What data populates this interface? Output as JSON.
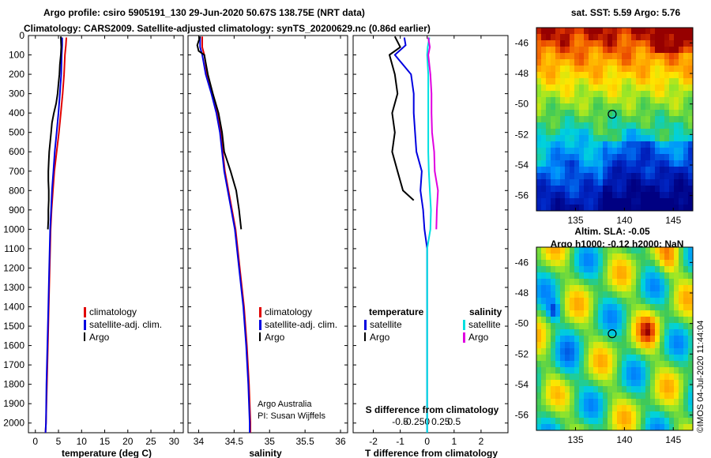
{
  "header": {
    "line1": "Argo profile: csiro 5905191_130 29-Jun-2020 50.67S 138.75E (NRT data)",
    "line2": "Climatology: CARS2009. Satellite-adjusted climatology: synTS_20200629.nc (0.86d earlier)"
  },
  "colors": {
    "climatology": "#e00000",
    "satellite": "#0000e0",
    "argo": "#000000",
    "sal_sat": "#00e0e0",
    "sal_argo": "#e000e0"
  },
  "depth_axis": {
    "ticks": [
      "0",
      "100",
      "200",
      "300",
      "400",
      "500",
      "600",
      "700",
      "800",
      "900",
      "1000",
      "1100",
      "1200",
      "1300",
      "1400",
      "1500",
      "1600",
      "1700",
      "1800",
      "1900",
      "2000"
    ]
  },
  "chart_data": [
    {
      "type": "line",
      "xlabel": "temperature (deg C)",
      "xticks": [
        "0",
        "5",
        "10",
        "15",
        "20",
        "25",
        "30"
      ],
      "xlim": [
        -1.5,
        32
      ],
      "ylim": [
        2050,
        0
      ],
      "legend": [
        "climatology",
        "satellite-adj. clim.",
        "Argo"
      ],
      "series": [
        {
          "name": "climatology",
          "color": "climatology",
          "points": [
            [
              6.7,
              10
            ],
            [
              6.6,
              50
            ],
            [
              6.4,
              100
            ],
            [
              6.2,
              200
            ],
            [
              5.9,
              300
            ],
            [
              5.5,
              400
            ],
            [
              5.1,
              500
            ],
            [
              4.6,
              600
            ],
            [
              4.1,
              700
            ],
            [
              3.8,
              800
            ],
            [
              3.5,
              900
            ],
            [
              3.3,
              1000
            ],
            [
              3.1,
              1200
            ],
            [
              2.9,
              1400
            ],
            [
              2.7,
              1600
            ],
            [
              2.5,
              1800
            ],
            [
              2.3,
              2000
            ],
            [
              2.2,
              2050
            ]
          ]
        },
        {
          "name": "satellite-adj. clim.",
          "color": "satellite",
          "points": [
            [
              5.8,
              10
            ],
            [
              5.8,
              50
            ],
            [
              5.7,
              100
            ],
            [
              5.6,
              200
            ],
            [
              5.3,
              300
            ],
            [
              5.0,
              400
            ],
            [
              4.6,
              500
            ],
            [
              4.2,
              600
            ],
            [
              3.9,
              700
            ],
            [
              3.6,
              800
            ],
            [
              3.4,
              900
            ],
            [
              3.2,
              1000
            ],
            [
              3.0,
              1200
            ],
            [
              2.8,
              1400
            ],
            [
              2.6,
              1600
            ],
            [
              2.4,
              1800
            ],
            [
              2.3,
              2000
            ],
            [
              2.2,
              2050
            ]
          ]
        },
        {
          "name": "Argo",
          "color": "argo",
          "points": [
            [
              5.5,
              5
            ],
            [
              5.6,
              60
            ],
            [
              5.5,
              100
            ],
            [
              5.3,
              150
            ],
            [
              5.2,
              200
            ],
            [
              5.0,
              250
            ],
            [
              4.8,
              300
            ],
            [
              4.5,
              350
            ],
            [
              4.0,
              400
            ],
            [
              3.6,
              450
            ],
            [
              3.4,
              500
            ],
            [
              3.2,
              550
            ],
            [
              3.0,
              600
            ],
            [
              2.9,
              650
            ],
            [
              2.8,
              700
            ],
            [
              2.8,
              750
            ],
            [
              2.9,
              800
            ],
            [
              2.9,
              850
            ],
            [
              2.8,
              900
            ],
            [
              2.8,
              950
            ],
            [
              2.7,
              1000
            ]
          ]
        }
      ]
    },
    {
      "type": "line",
      "xlabel": "salinity",
      "xticks": [
        "34",
        "34.5",
        "35",
        "35.5",
        "36"
      ],
      "xlim": [
        33.85,
        36.1
      ],
      "ylim": [
        2050,
        0
      ],
      "legend": [
        "climatology",
        "satellite-adj. clim.",
        "Argo"
      ],
      "annotation": [
        "Argo Australia",
        "PI: Susan Wijffels"
      ],
      "series": [
        {
          "name": "climatology",
          "color": "climatology",
          "points": [
            [
              34.05,
              5
            ],
            [
              34.05,
              60
            ],
            [
              34.08,
              100
            ],
            [
              34.12,
              200
            ],
            [
              34.2,
              300
            ],
            [
              34.27,
              400
            ],
            [
              34.31,
              500
            ],
            [
              34.34,
              600
            ],
            [
              34.37,
              700
            ],
            [
              34.42,
              800
            ],
            [
              34.47,
              900
            ],
            [
              34.52,
              1000
            ],
            [
              34.58,
              1200
            ],
            [
              34.64,
              1400
            ],
            [
              34.68,
              1600
            ],
            [
              34.71,
              1800
            ],
            [
              34.73,
              2000
            ],
            [
              34.73,
              2050
            ]
          ]
        },
        {
          "name": "satellite-adj. clim.",
          "color": "satellite",
          "points": [
            [
              34.02,
              5
            ],
            [
              34.02,
              60
            ],
            [
              34.05,
              100
            ],
            [
              34.1,
              200
            ],
            [
              34.18,
              300
            ],
            [
              34.25,
              400
            ],
            [
              34.3,
              500
            ],
            [
              34.33,
              600
            ],
            [
              34.36,
              700
            ],
            [
              34.41,
              800
            ],
            [
              34.46,
              900
            ],
            [
              34.51,
              1000
            ],
            [
              34.57,
              1200
            ],
            [
              34.63,
              1400
            ],
            [
              34.67,
              1600
            ],
            [
              34.7,
              1800
            ],
            [
              34.72,
              2000
            ],
            [
              34.72,
              2050
            ]
          ]
        },
        {
          "name": "Argo",
          "color": "argo",
          "points": [
            [
              34.02,
              5
            ],
            [
              33.98,
              50
            ],
            [
              34.0,
              80
            ],
            [
              34.08,
              100
            ],
            [
              34.13,
              200
            ],
            [
              34.2,
              300
            ],
            [
              34.28,
              400
            ],
            [
              34.33,
              500
            ],
            [
              34.36,
              600
            ],
            [
              34.45,
              700
            ],
            [
              34.53,
              800
            ],
            [
              34.57,
              900
            ],
            [
              34.6,
              1000
            ]
          ]
        }
      ]
    },
    {
      "type": "line",
      "xlabel": "T difference from climatology",
      "xlabel2": "S difference from climatology",
      "xticks": [
        "-2",
        "-1",
        "0",
        "1",
        "2"
      ],
      "xticks2": [
        "-0.5",
        "-0.25",
        "0",
        "0.25",
        "0.5"
      ],
      "xlim": [
        -2.75,
        3.0
      ],
      "ylim": [
        2050,
        0
      ],
      "legend_left_title": "temperature",
      "legend_right_title": "salinity",
      "legend_left": [
        "satellite",
        "Argo"
      ],
      "legend_right": [
        "satellite",
        "Argo"
      ],
      "series": [
        {
          "name": "satellite",
          "color": "satellite",
          "points": [
            [
              -0.85,
              10
            ],
            [
              -0.8,
              50
            ],
            [
              -1.2,
              100
            ],
            [
              -0.6,
              200
            ],
            [
              -0.5,
              300
            ],
            [
              -0.5,
              400
            ],
            [
              -0.45,
              500
            ],
            [
              -0.4,
              600
            ],
            [
              -0.2,
              700
            ],
            [
              -0.25,
              800
            ],
            [
              -0.15,
              900
            ],
            [
              -0.1,
              1000
            ],
            [
              0,
              1100
            ],
            [
              0,
              2050
            ]
          ]
        },
        {
          "name": "Argo",
          "color": "argo",
          "points": [
            [
              -1.2,
              5
            ],
            [
              -1.0,
              60
            ],
            [
              -1.4,
              100
            ],
            [
              -1.2,
              200
            ],
            [
              -1.1,
              300
            ],
            [
              -1.3,
              400
            ],
            [
              -1.2,
              500
            ],
            [
              -1.3,
              600
            ],
            [
              -1.1,
              700
            ],
            [
              -0.9,
              800
            ],
            [
              -0.5,
              850
            ]
          ]
        },
        {
          "name": "satellite",
          "color": "sal_sat",
          "points": [
            [
              0.04,
              10
            ],
            [
              0.01,
              60
            ],
            [
              0.0,
              100
            ],
            [
              0.02,
              200
            ],
            [
              0.02,
              300
            ],
            [
              0.02,
              400
            ],
            [
              0.02,
              500
            ],
            [
              0.02,
              600
            ],
            [
              0.03,
              700
            ],
            [
              0.05,
              800
            ],
            [
              0.07,
              900
            ],
            [
              0.06,
              1000
            ],
            [
              0.0,
              1100
            ],
            [
              0,
              2050
            ]
          ]
        },
        {
          "name": "Argo",
          "color": "sal_argo",
          "points": [
            [
              0.02,
              10
            ],
            [
              0.05,
              60
            ],
            [
              0.02,
              100
            ],
            [
              0.06,
              200
            ],
            [
              0.08,
              300
            ],
            [
              0.08,
              400
            ],
            [
              0.09,
              500
            ],
            [
              0.13,
              600
            ],
            [
              0.14,
              700
            ],
            [
              0.2,
              800
            ],
            [
              0.18,
              900
            ],
            [
              0.17,
              1000
            ]
          ]
        }
      ]
    },
    {
      "type": "heatmap",
      "title": "sat. SST: 5.59 Argo: 5.76",
      "xticks": [
        "135",
        "140",
        "145"
      ],
      "yticks": [
        "-46",
        "-48",
        "-50",
        "-52",
        "-54",
        "-56"
      ],
      "xlim": [
        131,
        147
      ],
      "ylim": [
        -57,
        -45
      ],
      "marker": [
        138.75,
        -50.67
      ]
    },
    {
      "type": "heatmap",
      "title": "Altim. SLA: -0.05",
      "title2": "Argo h1000: -0.12 h2000: NaN",
      "xticks": [
        "135",
        "140",
        "145"
      ],
      "yticks": [
        "-46",
        "-48",
        "-50",
        "-52",
        "-54",
        "-56"
      ],
      "xlim": [
        131,
        147
      ],
      "ylim": [
        -57,
        -45
      ],
      "marker": [
        138.75,
        -50.67
      ],
      "credit": "©IMOS 04-Jul-2020 11:44:04"
    }
  ]
}
